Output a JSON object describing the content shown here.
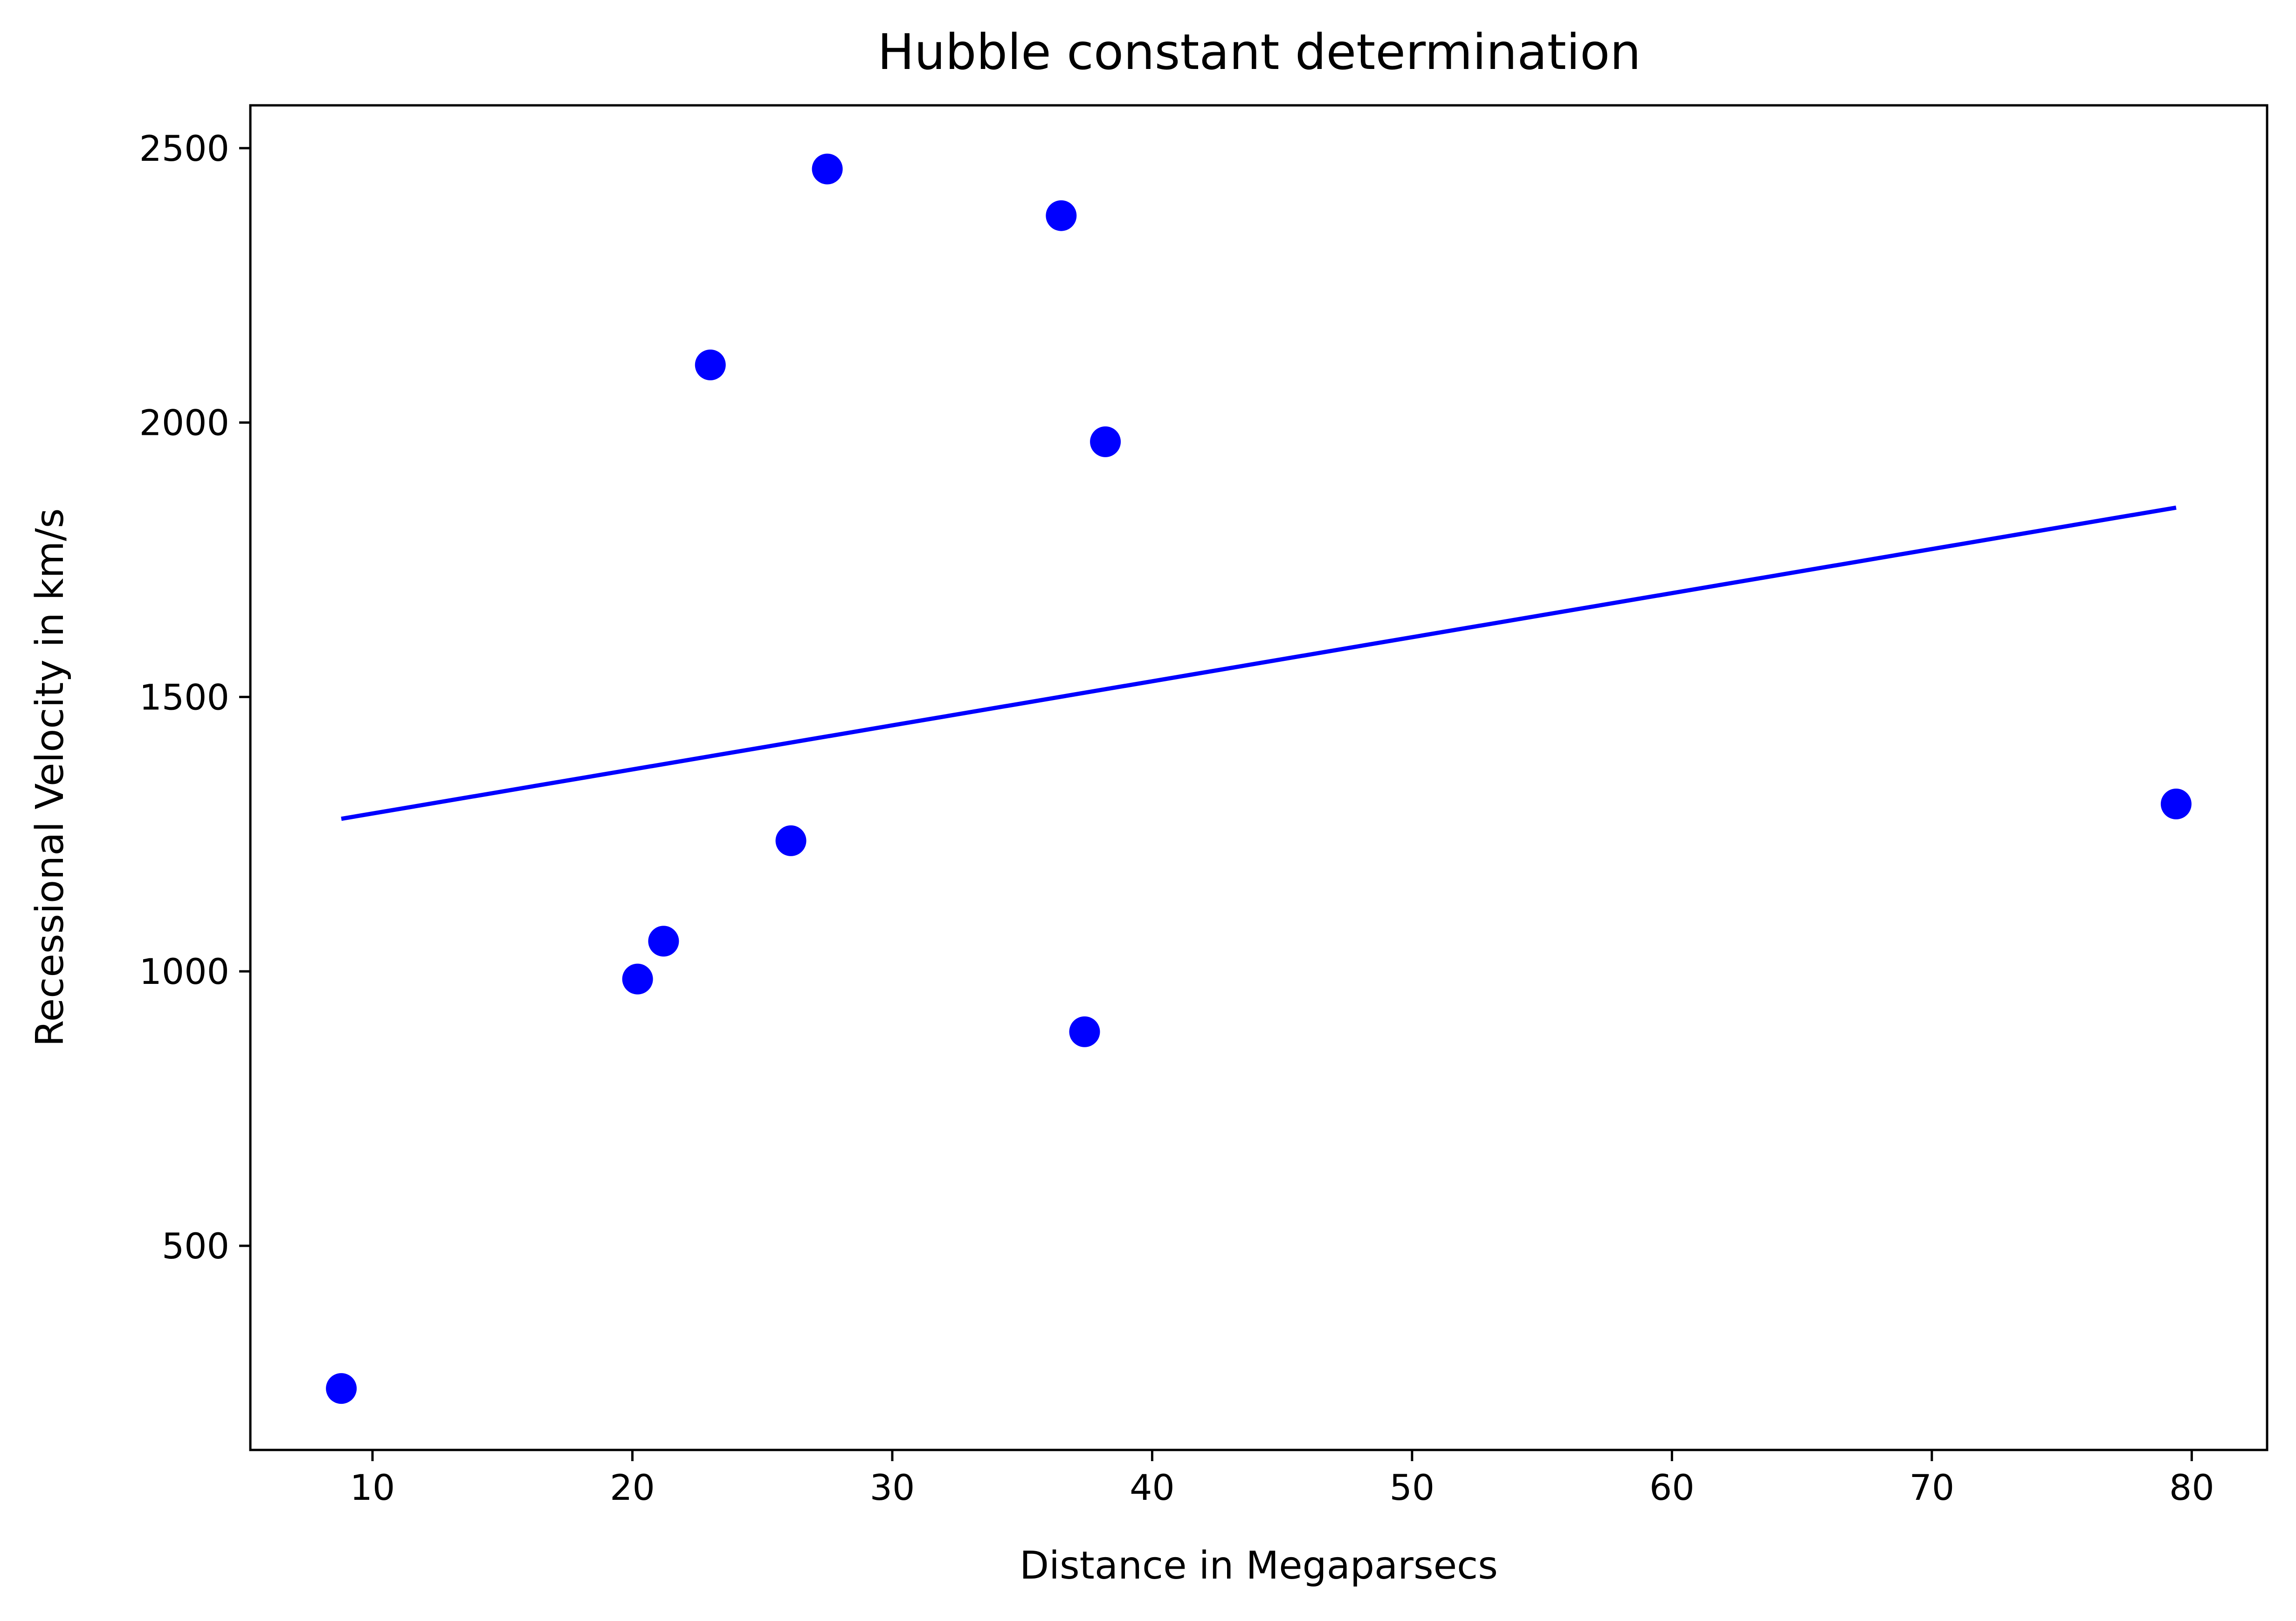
{
  "chart_data": {
    "type": "scatter",
    "title": "Hubble constant determination",
    "xlabel": "Distance in Megaparsecs",
    "ylabel": "Recessional Velocity in km/s",
    "xlim": [
      5.3,
      82.9
    ],
    "ylim": [
      128,
      2578
    ],
    "xticks": [
      10,
      20,
      30,
      40,
      50,
      60,
      70,
      80
    ],
    "yticks": [
      500,
      1000,
      1500,
      2000,
      2500
    ],
    "grid": false,
    "color": "#0000ff",
    "points": [
      {
        "x": 8.8,
        "y": 240
      },
      {
        "x": 20.2,
        "y": 986
      },
      {
        "x": 21.2,
        "y": 1055
      },
      {
        "x": 23.0,
        "y": 2105
      },
      {
        "x": 26.1,
        "y": 1238
      },
      {
        "x": 27.5,
        "y": 2462
      },
      {
        "x": 36.5,
        "y": 2377
      },
      {
        "x": 37.4,
        "y": 890
      },
      {
        "x": 38.2,
        "y": 1965
      },
      {
        "x": 79.4,
        "y": 1305
      }
    ],
    "fit_line": [
      {
        "x": 8.8,
        "y": 1278
      },
      {
        "x": 79.4,
        "y": 1845
      }
    ]
  }
}
